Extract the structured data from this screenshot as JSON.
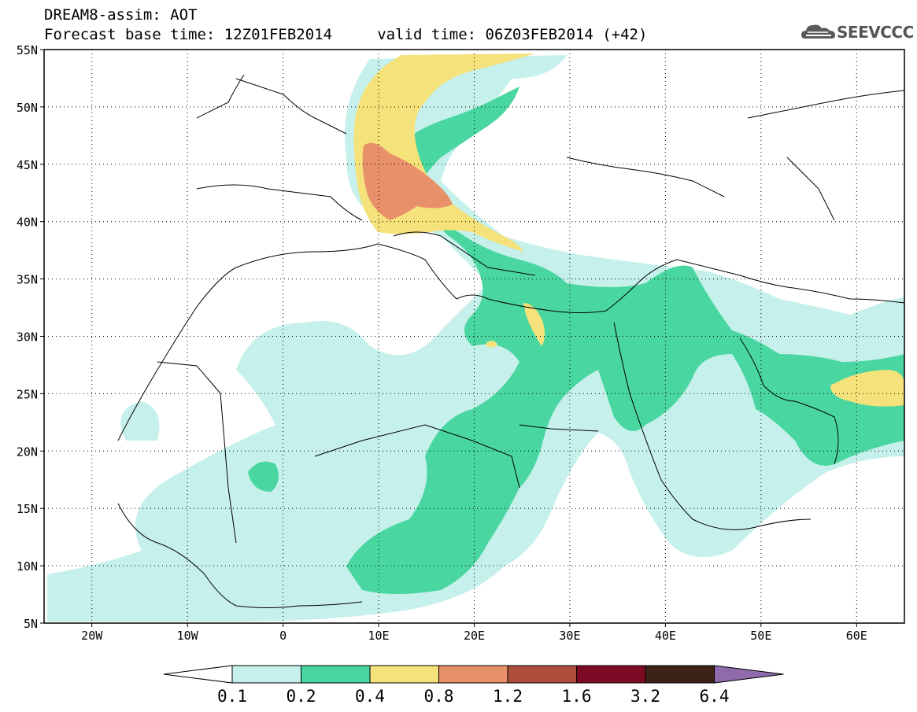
{
  "header": {
    "line1": "DREAM8-assim: AOT",
    "line2": "Forecast base time: 12Z01FEB2014     valid time: 06Z03FEB2014 (+42)"
  },
  "logo": {
    "text": "SEEVCCC",
    "icon": "cloud-icon"
  },
  "map": {
    "lon_range": [
      -25,
      65
    ],
    "lat_range": [
      5,
      55
    ],
    "lat_ticks": [
      "55N",
      "50N",
      "45N",
      "40N",
      "35N",
      "30N",
      "25N",
      "20N",
      "15N",
      "10N",
      "5N"
    ],
    "lon_ticks": [
      "20W",
      "10W",
      "0",
      "10E",
      "20E",
      "30E",
      "40E",
      "50E",
      "60E"
    ],
    "grid": "dotted"
  },
  "colorbar": {
    "labels": [
      "0.1",
      "0.2",
      "0.4",
      "0.8",
      "1.2",
      "1.6",
      "3.2",
      "6.4"
    ],
    "colors": [
      "#ffffff",
      "#c6f0eb",
      "#49d6a0",
      "#f5e27a",
      "#e8906a",
      "#ad4f3a",
      "#7c0a25",
      "#3c2316",
      "#8f6bac"
    ]
  }
}
